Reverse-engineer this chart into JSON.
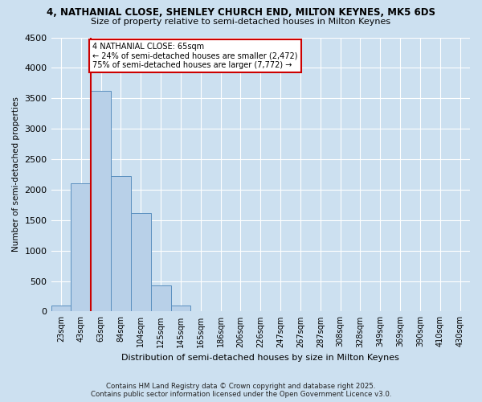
{
  "title": "4, NATHANIAL CLOSE, SHENLEY CHURCH END, MILTON KEYNES, MK5 6DS",
  "subtitle": "Size of property relative to semi-detached houses in Milton Keynes",
  "xlabel": "Distribution of semi-detached houses by size in Milton Keynes",
  "ylabel": "Number of semi-detached properties",
  "bin_labels": [
    "23sqm",
    "43sqm",
    "63sqm",
    "84sqm",
    "104sqm",
    "125sqm",
    "145sqm",
    "165sqm",
    "186sqm",
    "206sqm",
    "226sqm",
    "247sqm",
    "267sqm",
    "287sqm",
    "308sqm",
    "328sqm",
    "349sqm",
    "369sqm",
    "390sqm",
    "410sqm",
    "430sqm"
  ],
  "bar_values": [
    100,
    2100,
    3620,
    2220,
    1620,
    430,
    100,
    0,
    0,
    0,
    0,
    0,
    0,
    0,
    0,
    0,
    0,
    0,
    0,
    0,
    0
  ],
  "bar_color": "#b8d0e8",
  "bar_edge_color": "#5a8fbf",
  "background_color": "#cce0f0",
  "grid_color": "#ffffff",
  "property_line_color": "#cc0000",
  "annotation_title": "4 NATHANIAL CLOSE: 65sqm",
  "annotation_line1": "← 24% of semi-detached houses are smaller (2,472)",
  "annotation_line2": "75% of semi-detached houses are larger (7,772) →",
  "annotation_box_color": "#cc0000",
  "ylim": [
    0,
    4500
  ],
  "yticks": [
    0,
    500,
    1000,
    1500,
    2000,
    2500,
    3000,
    3500,
    4000,
    4500
  ],
  "footnote1": "Contains HM Land Registry data © Crown copyright and database right 2025.",
  "footnote2": "Contains public sector information licensed under the Open Government Licence v3.0."
}
